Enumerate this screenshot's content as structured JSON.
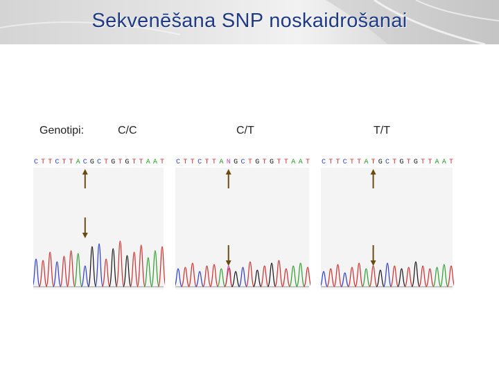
{
  "slide": {
    "title": "Sekvenēšana SNP noskaidrošanai",
    "genotype_label": "Genotipi:"
  },
  "panels": [
    {
      "genotype": "C/C",
      "bases": "CTTCTTACGCTGTGTTAAT"
    },
    {
      "genotype": "C/T",
      "bases": "CTTCTTANGCTGTGTTAAT"
    },
    {
      "genotype": "T/T",
      "bases": "CTTCTTATGCTGTGTTAAT"
    }
  ],
  "colors": {
    "title": "#1f3a86",
    "arrow": "#6b4a12",
    "A": "#2a9d2a",
    "C": "#2a3ad0",
    "G": "#111111",
    "T": "#d02a2a",
    "N": "#c050c0"
  }
}
